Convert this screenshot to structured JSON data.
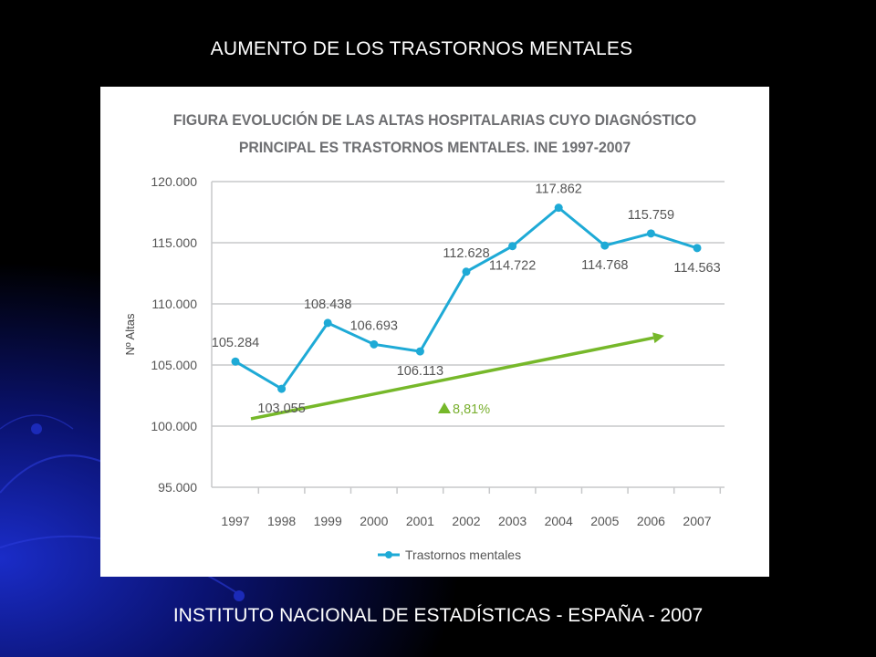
{
  "slide": {
    "title": "AUMENTO DE LOS TRASTORNOS MENTALES",
    "footer": "INSTITUTO NACIONAL DE ESTADÍSTICAS - ESPAÑA - 2007"
  },
  "colors": {
    "series": "#1eaad6",
    "trend": "#76b82a",
    "grid": "#c7c8ca"
  },
  "chart_data": {
    "type": "line",
    "title_lines": [
      "FIGURA EVOLUCIÓN DE LAS ALTAS HOSPITALARIAS CUYO DIAGNÓSTICO",
      "PRINCIPAL ES TRASTORNOS MENTALES. INE 1997-2007"
    ],
    "xlabel": "",
    "ylabel": "Nº Altas",
    "ylim": [
      95000,
      120000
    ],
    "yticks": [
      95000,
      100000,
      105000,
      110000,
      115000,
      120000
    ],
    "ytick_labels": [
      "95.000",
      "100.000",
      "105.000",
      "110.000",
      "115.000",
      "120.000"
    ],
    "grid": true,
    "legend_position": "bottom",
    "x": [
      "1997",
      "1998",
      "1999",
      "2000",
      "2001",
      "2002",
      "2003",
      "2004",
      "2005",
      "2006",
      "2007"
    ],
    "series": [
      {
        "name": "Trastornos mentales",
        "values": [
          105284,
          103055,
          108438,
          106693,
          106113,
          112628,
          114722,
          117862,
          114768,
          115759,
          114563
        ],
        "labels": [
          "105.284",
          "103.055",
          "108.438",
          "106.693",
          "106.113",
          "112.628",
          "114.722",
          "117.862",
          "114.768",
          "115.759",
          "114.563"
        ],
        "label_pos": [
          "above",
          "below",
          "above",
          "above",
          "below",
          "above",
          "below",
          "above",
          "below",
          "above",
          "below"
        ]
      }
    ],
    "trend_annotation": {
      "label": "8,81%",
      "from": {
        "x": "1997",
        "y": 100600
      },
      "to": {
        "x": "2007",
        "y": 107400
      }
    }
  }
}
